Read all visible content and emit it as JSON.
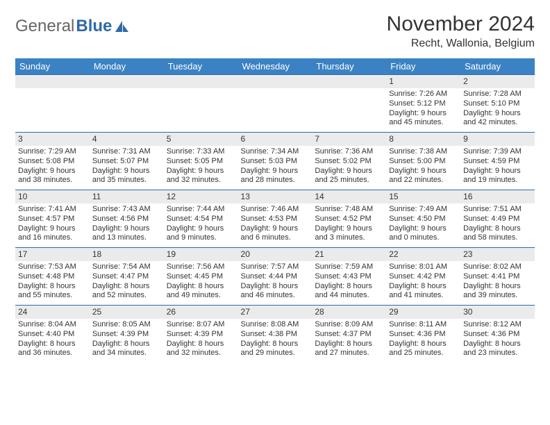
{
  "brand": {
    "part1": "General",
    "part2": "Blue"
  },
  "title": "November 2024",
  "location": "Recht, Wallonia, Belgium",
  "colors": {
    "header_bg": "#3b82c4",
    "header_text": "#ffffff",
    "daynum_bg": "#ebebeb",
    "rule": "#2f6aa8",
    "logo_accent": "#2f6aa8"
  },
  "layout": {
    "cols": 7,
    "rows": 5,
    "cell_font_pt": 8,
    "header_font_pt": 10
  },
  "days_of_week": [
    "Sunday",
    "Monday",
    "Tuesday",
    "Wednesday",
    "Thursday",
    "Friday",
    "Saturday"
  ],
  "weeks": [
    [
      null,
      null,
      null,
      null,
      null,
      {
        "n": "1",
        "sunrise": "Sunrise: 7:26 AM",
        "sunset": "Sunset: 5:12 PM",
        "daylight": "Daylight: 9 hours and 45 minutes."
      },
      {
        "n": "2",
        "sunrise": "Sunrise: 7:28 AM",
        "sunset": "Sunset: 5:10 PM",
        "daylight": "Daylight: 9 hours and 42 minutes."
      }
    ],
    [
      {
        "n": "3",
        "sunrise": "Sunrise: 7:29 AM",
        "sunset": "Sunset: 5:08 PM",
        "daylight": "Daylight: 9 hours and 38 minutes."
      },
      {
        "n": "4",
        "sunrise": "Sunrise: 7:31 AM",
        "sunset": "Sunset: 5:07 PM",
        "daylight": "Daylight: 9 hours and 35 minutes."
      },
      {
        "n": "5",
        "sunrise": "Sunrise: 7:33 AM",
        "sunset": "Sunset: 5:05 PM",
        "daylight": "Daylight: 9 hours and 32 minutes."
      },
      {
        "n": "6",
        "sunrise": "Sunrise: 7:34 AM",
        "sunset": "Sunset: 5:03 PM",
        "daylight": "Daylight: 9 hours and 28 minutes."
      },
      {
        "n": "7",
        "sunrise": "Sunrise: 7:36 AM",
        "sunset": "Sunset: 5:02 PM",
        "daylight": "Daylight: 9 hours and 25 minutes."
      },
      {
        "n": "8",
        "sunrise": "Sunrise: 7:38 AM",
        "sunset": "Sunset: 5:00 PM",
        "daylight": "Daylight: 9 hours and 22 minutes."
      },
      {
        "n": "9",
        "sunrise": "Sunrise: 7:39 AM",
        "sunset": "Sunset: 4:59 PM",
        "daylight": "Daylight: 9 hours and 19 minutes."
      }
    ],
    [
      {
        "n": "10",
        "sunrise": "Sunrise: 7:41 AM",
        "sunset": "Sunset: 4:57 PM",
        "daylight": "Daylight: 9 hours and 16 minutes."
      },
      {
        "n": "11",
        "sunrise": "Sunrise: 7:43 AM",
        "sunset": "Sunset: 4:56 PM",
        "daylight": "Daylight: 9 hours and 13 minutes."
      },
      {
        "n": "12",
        "sunrise": "Sunrise: 7:44 AM",
        "sunset": "Sunset: 4:54 PM",
        "daylight": "Daylight: 9 hours and 9 minutes."
      },
      {
        "n": "13",
        "sunrise": "Sunrise: 7:46 AM",
        "sunset": "Sunset: 4:53 PM",
        "daylight": "Daylight: 9 hours and 6 minutes."
      },
      {
        "n": "14",
        "sunrise": "Sunrise: 7:48 AM",
        "sunset": "Sunset: 4:52 PM",
        "daylight": "Daylight: 9 hours and 3 minutes."
      },
      {
        "n": "15",
        "sunrise": "Sunrise: 7:49 AM",
        "sunset": "Sunset: 4:50 PM",
        "daylight": "Daylight: 9 hours and 0 minutes."
      },
      {
        "n": "16",
        "sunrise": "Sunrise: 7:51 AM",
        "sunset": "Sunset: 4:49 PM",
        "daylight": "Daylight: 8 hours and 58 minutes."
      }
    ],
    [
      {
        "n": "17",
        "sunrise": "Sunrise: 7:53 AM",
        "sunset": "Sunset: 4:48 PM",
        "daylight": "Daylight: 8 hours and 55 minutes."
      },
      {
        "n": "18",
        "sunrise": "Sunrise: 7:54 AM",
        "sunset": "Sunset: 4:47 PM",
        "daylight": "Daylight: 8 hours and 52 minutes."
      },
      {
        "n": "19",
        "sunrise": "Sunrise: 7:56 AM",
        "sunset": "Sunset: 4:45 PM",
        "daylight": "Daylight: 8 hours and 49 minutes."
      },
      {
        "n": "20",
        "sunrise": "Sunrise: 7:57 AM",
        "sunset": "Sunset: 4:44 PM",
        "daylight": "Daylight: 8 hours and 46 minutes."
      },
      {
        "n": "21",
        "sunrise": "Sunrise: 7:59 AM",
        "sunset": "Sunset: 4:43 PM",
        "daylight": "Daylight: 8 hours and 44 minutes."
      },
      {
        "n": "22",
        "sunrise": "Sunrise: 8:01 AM",
        "sunset": "Sunset: 4:42 PM",
        "daylight": "Daylight: 8 hours and 41 minutes."
      },
      {
        "n": "23",
        "sunrise": "Sunrise: 8:02 AM",
        "sunset": "Sunset: 4:41 PM",
        "daylight": "Daylight: 8 hours and 39 minutes."
      }
    ],
    [
      {
        "n": "24",
        "sunrise": "Sunrise: 8:04 AM",
        "sunset": "Sunset: 4:40 PM",
        "daylight": "Daylight: 8 hours and 36 minutes."
      },
      {
        "n": "25",
        "sunrise": "Sunrise: 8:05 AM",
        "sunset": "Sunset: 4:39 PM",
        "daylight": "Daylight: 8 hours and 34 minutes."
      },
      {
        "n": "26",
        "sunrise": "Sunrise: 8:07 AM",
        "sunset": "Sunset: 4:39 PM",
        "daylight": "Daylight: 8 hours and 32 minutes."
      },
      {
        "n": "27",
        "sunrise": "Sunrise: 8:08 AM",
        "sunset": "Sunset: 4:38 PM",
        "daylight": "Daylight: 8 hours and 29 minutes."
      },
      {
        "n": "28",
        "sunrise": "Sunrise: 8:09 AM",
        "sunset": "Sunset: 4:37 PM",
        "daylight": "Daylight: 8 hours and 27 minutes."
      },
      {
        "n": "29",
        "sunrise": "Sunrise: 8:11 AM",
        "sunset": "Sunset: 4:36 PM",
        "daylight": "Daylight: 8 hours and 25 minutes."
      },
      {
        "n": "30",
        "sunrise": "Sunrise: 8:12 AM",
        "sunset": "Sunset: 4:36 PM",
        "daylight": "Daylight: 8 hours and 23 minutes."
      }
    ]
  ]
}
